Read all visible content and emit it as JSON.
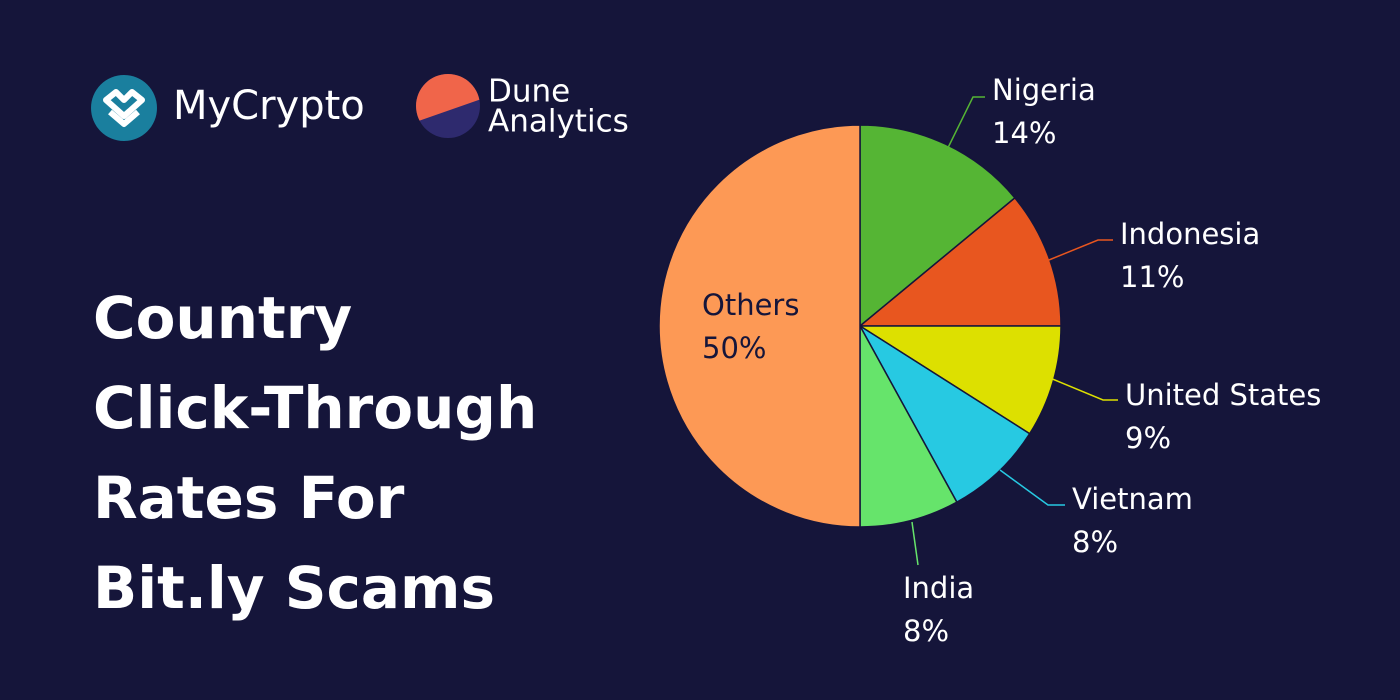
{
  "brand": {
    "mycrypto": "MyCrypto",
    "dune": [
      "Dune",
      "Analytics"
    ]
  },
  "chart_data": {
    "type": "pie",
    "title": [
      "Country",
      "Click-Through",
      "Rates For",
      "Bit.ly Scams"
    ],
    "categories": [
      "Nigeria",
      "Indonesia",
      "United States",
      "Vietnam",
      "India",
      "Others"
    ],
    "values": [
      14,
      11,
      9,
      8,
      8,
      50
    ],
    "value_labels": [
      "14%",
      "11%",
      "9%",
      "8%",
      "8%",
      "50%"
    ],
    "colors": [
      "#55b534",
      "#e8561f",
      "#dde000",
      "#27c9e2",
      "#66e46b",
      "#fd9955"
    ]
  }
}
